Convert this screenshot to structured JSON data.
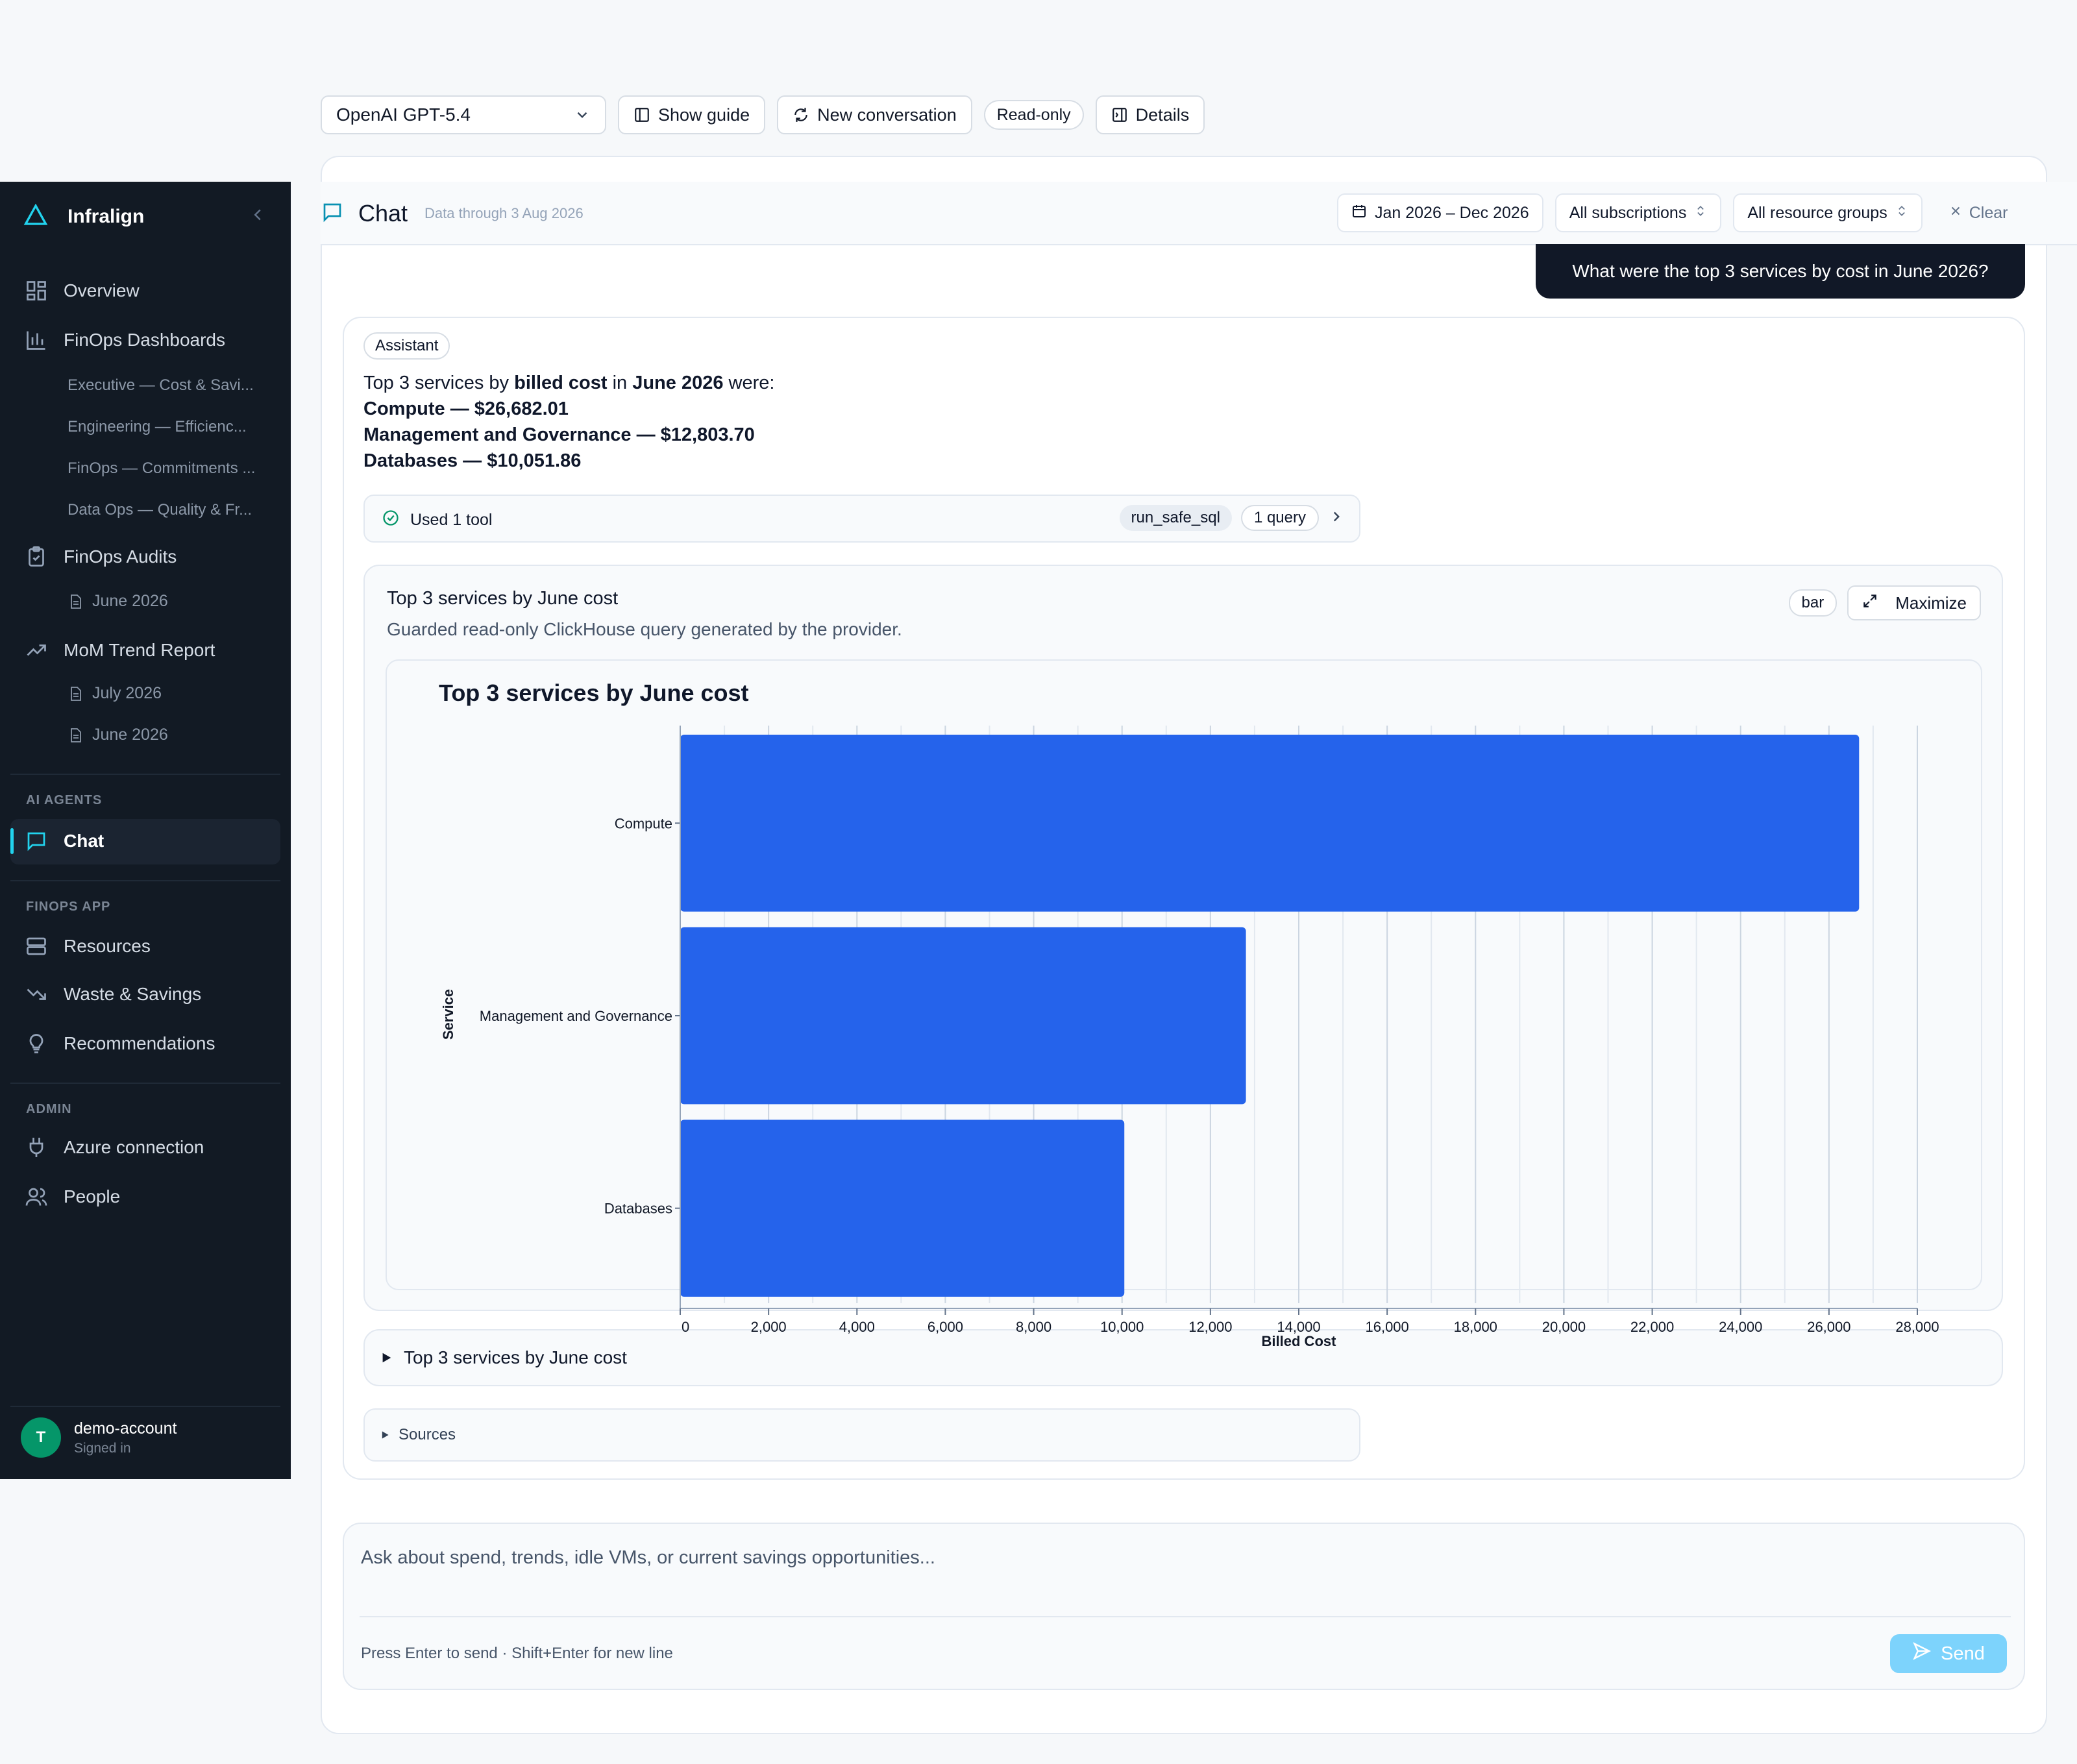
{
  "toolbar": {
    "model": "OpenAI GPT-5.4",
    "show_guide": "Show guide",
    "new_conversation": "New conversation",
    "read_only": "Read-only",
    "details": "Details"
  },
  "sidebar": {
    "brand": "Infralign",
    "nav": {
      "overview": "Overview",
      "finops_dashboards": "FinOps Dashboards",
      "dash_items": [
        "Executive — Cost & Savi...",
        "Engineering — Efficienc...",
        "FinOps — Commitments ...",
        "Data Ops — Quality & Fr..."
      ],
      "finops_audits": "FinOps Audits",
      "audit_items": [
        "June 2026"
      ],
      "mom_trend": "MoM Trend Report",
      "mom_items": [
        "July 2026",
        "June 2026"
      ]
    },
    "sections": {
      "ai_agents": "AI AGENTS",
      "finops_app": "FINOPS APP",
      "admin": "ADMIN"
    },
    "chat": "Chat",
    "resources": "Resources",
    "waste_savings": "Waste & Savings",
    "recommendations": "Recommendations",
    "azure_connection": "Azure connection",
    "people": "People",
    "user": {
      "initial": "T",
      "name": "demo-account",
      "status": "Signed in"
    }
  },
  "header": {
    "title": "Chat",
    "subtitle": "Data through 3 Aug 2026",
    "date_range": "Jan 2026 – Dec 2026",
    "subscriptions": "All subscriptions",
    "resource_groups": "All resource groups",
    "clear": "Clear"
  },
  "conversation": {
    "user_message": "What were the top 3 services by cost in June 2026?",
    "assistant_badge": "Assistant",
    "answer": {
      "intro_pre": "Top 3 services by ",
      "intro_metric": "billed cost",
      "intro_mid": " in ",
      "intro_month": "June 2026",
      "intro_post": " were:",
      "lines": [
        "Compute — $26,682.01",
        "Management and Governance — $12,803.70",
        "Databases — $10,051.86"
      ]
    },
    "tool": {
      "label": "Used 1 tool",
      "name": "run_safe_sql",
      "queries": "1 query"
    },
    "chart_card": {
      "title": "Top 3 services by June cost",
      "subtitle": "Guarded read-only ClickHouse query generated by the provider.",
      "type_badge": "bar",
      "maximize": "Maximize"
    },
    "details_toggle": "Top 3 services by June cost",
    "sources_toggle": "Sources"
  },
  "composer": {
    "placeholder": "Ask about spend, trends, idle VMs, or current savings opportunities...",
    "hint": "Press Enter to send · Shift+Enter for new line",
    "send": "Send"
  },
  "colors": {
    "bar": "#2563eb",
    "sidebar": "#121a24",
    "accent": "#22d3ee",
    "send": "#7dd3fc"
  },
  "chart_data": {
    "type": "bar",
    "orientation": "horizontal",
    "title": "Top 3 services by June cost",
    "categories": [
      "Compute",
      "Management and Governance",
      "Databases"
    ],
    "values": [
      26682.01,
      12803.7,
      10051.86
    ],
    "xlabel": "Billed Cost",
    "ylabel": "Service",
    "xlim": [
      0,
      28000
    ],
    "xticks": [
      0,
      2000,
      4000,
      6000,
      8000,
      10000,
      12000,
      14000,
      16000,
      18000,
      20000,
      22000,
      24000,
      26000,
      28000
    ],
    "grid": true
  }
}
